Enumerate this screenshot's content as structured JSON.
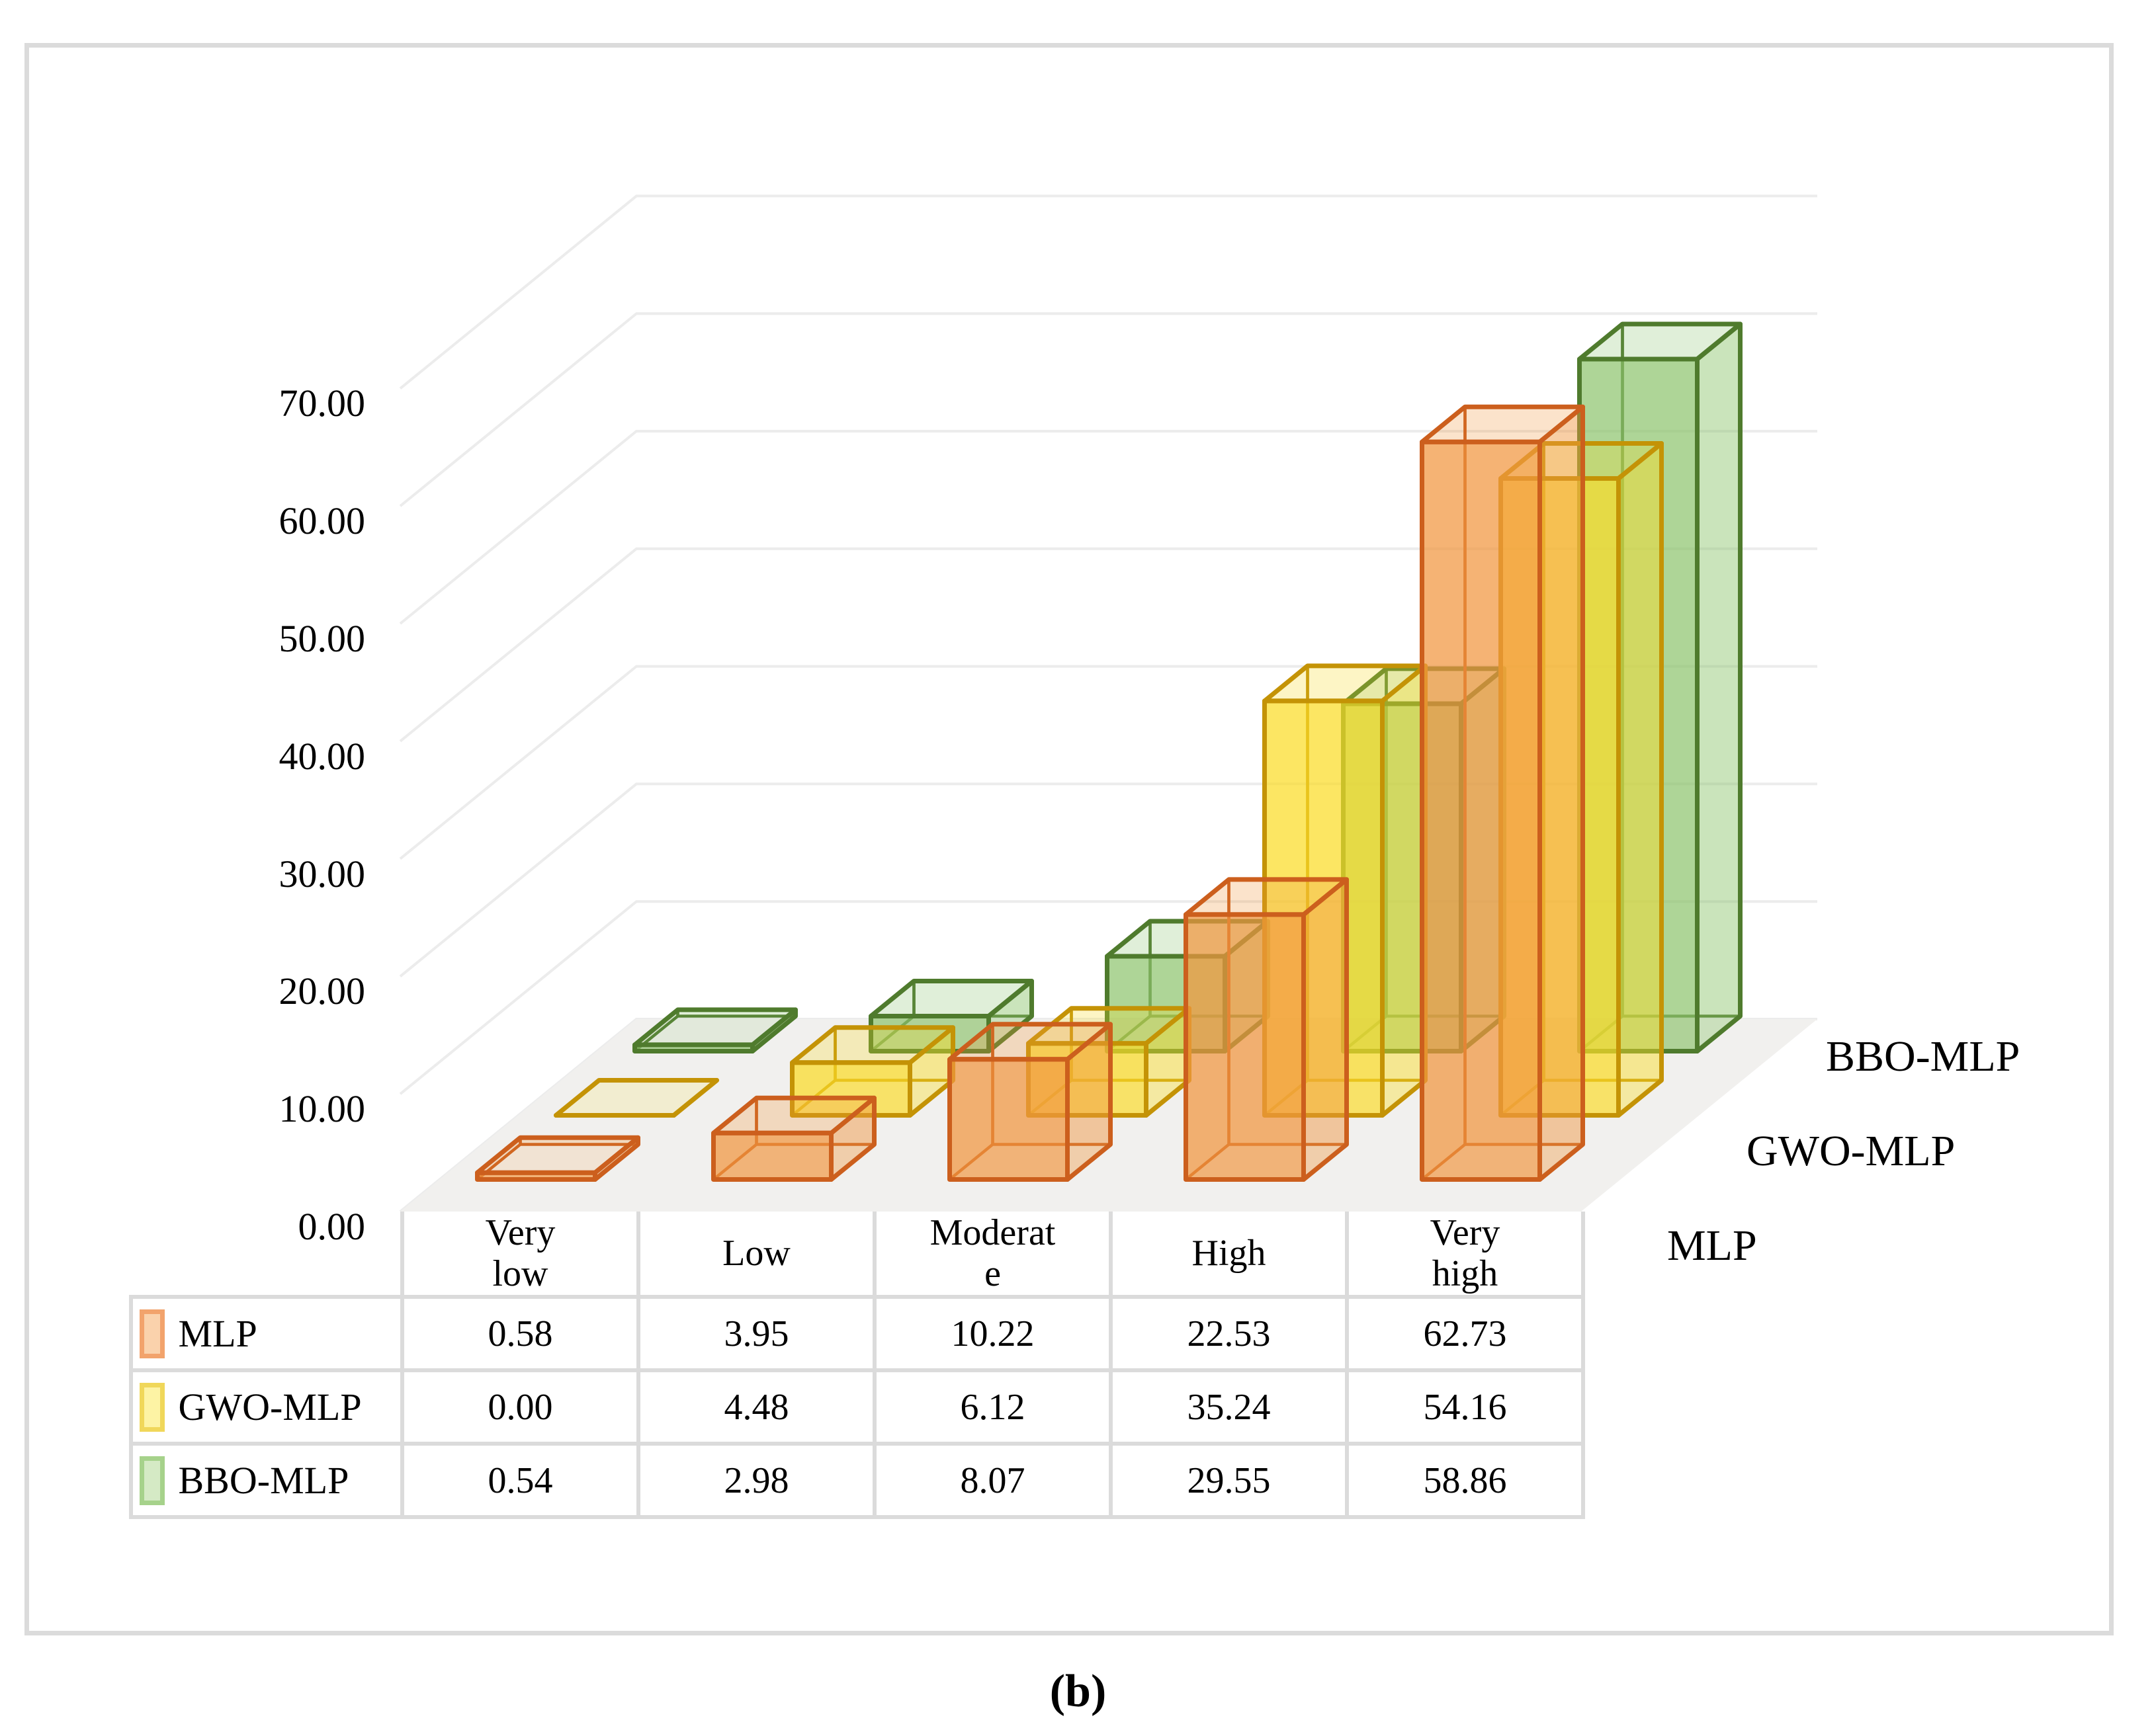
{
  "figure": {
    "caption": "(b)"
  },
  "y_axis": {
    "tick_labels": [
      "70.00",
      "60.00",
      "50.00",
      "40.00",
      "30.00",
      "20.00",
      "10.00",
      "0.00"
    ]
  },
  "table": {
    "headers": [
      {
        "lines": [
          "Very",
          "low"
        ]
      },
      {
        "lines": [
          "Low",
          ""
        ]
      },
      {
        "lines": [
          "Moderat",
          "e"
        ]
      },
      {
        "lines": [
          "High",
          ""
        ]
      },
      {
        "lines": [
          "Very",
          "high"
        ]
      }
    ],
    "rows": [
      {
        "name": "MLP",
        "values": [
          "0.58",
          "3.95",
          "10.22",
          "22.53",
          "62.73"
        ]
      },
      {
        "name": "GWO-MLP",
        "values": [
          "0.00",
          "4.48",
          "6.12",
          "35.24",
          "54.16"
        ]
      },
      {
        "name": "BBO-MLP",
        "values": [
          "0.54",
          "2.98",
          "8.07",
          "29.55",
          "58.86"
        ]
      }
    ]
  },
  "chart_data": {
    "type": "bar",
    "projection": "3d",
    "title": "",
    "xlabel": "",
    "ylabel": "",
    "categories": [
      "Very low",
      "Low",
      "Moderate",
      "High",
      "Very high"
    ],
    "series": [
      {
        "name": "MLP",
        "values": [
          0.58,
          3.95,
          10.22,
          22.53,
          62.73
        ],
        "stroke": "#CC5F1D",
        "fill": "#F0973F",
        "swatch_fill": "#FAD2AC",
        "swatch_border": "#F2A36C"
      },
      {
        "name": "GWO-MLP",
        "values": [
          0.0,
          4.48,
          6.12,
          35.24,
          54.16
        ],
        "stroke": "#C49306",
        "fill": "#FBDC28",
        "swatch_fill": "#FDF3A4",
        "swatch_border": "#F0D75A"
      },
      {
        "name": "BBO-MLP",
        "values": [
          0.54,
          2.98,
          8.07,
          29.55,
          58.86
        ],
        "stroke": "#4F7B2D",
        "fill": "#8FC46F",
        "swatch_fill": "#D5EAC5",
        "swatch_border": "#A6D28B"
      }
    ],
    "ylim": [
      0,
      70
    ],
    "ytick_step": 10,
    "grid": true,
    "floor_color": "#F1F0EE",
    "gridline_color": "#ECECEC",
    "legend_position": "table-left"
  }
}
